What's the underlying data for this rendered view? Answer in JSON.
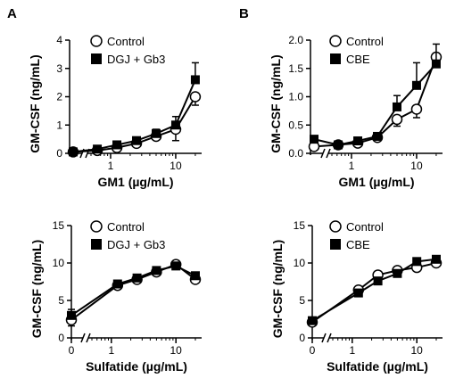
{
  "chart_data": [
    {
      "panel": "A",
      "type": "line",
      "xscale": "log",
      "xbreak": true,
      "xlabel": "GM1 (µg/mL)",
      "ylabel": "GM-CSF (ng/mL)",
      "ylim": [
        0,
        4
      ],
      "yticks": [
        "0",
        "1",
        "2",
        "3",
        "4"
      ],
      "xticks": [
        "1",
        "10"
      ],
      "legend_position": "top-left",
      "series": [
        {
          "name": "Control",
          "marker": "open-circle",
          "x": [
            0,
            0.625,
            1.25,
            2.5,
            5,
            10,
            20
          ],
          "y": [
            0.05,
            0.1,
            0.2,
            0.35,
            0.6,
            0.85,
            2.0
          ],
          "err": [
            0.04,
            0.05,
            0.08,
            0.1,
            0.12,
            0.4,
            0.3
          ]
        },
        {
          "name": "DGJ + Gb3",
          "marker": "filled-square",
          "x": [
            0,
            0.625,
            1.25,
            2.5,
            5,
            10,
            20
          ],
          "y": [
            0.05,
            0.15,
            0.3,
            0.45,
            0.7,
            1.0,
            2.6
          ],
          "err": [
            0.04,
            0.06,
            0.1,
            0.12,
            0.15,
            0.3,
            0.6
          ]
        }
      ]
    },
    {
      "panel": "B",
      "type": "line",
      "xscale": "log",
      "xbreak": true,
      "xlabel": "GM1 (µg/mL)",
      "ylabel": "GM-CSF (ng/mL)",
      "ylim": [
        0,
        2.0
      ],
      "yticks": [
        "0.0",
        "0.5",
        "1.0",
        "1.5",
        "2.0"
      ],
      "xticks": [
        "1",
        "10"
      ],
      "legend_position": "top-left",
      "series": [
        {
          "name": "Control",
          "marker": "open-circle",
          "x": [
            0,
            0.625,
            1.25,
            2.5,
            5,
            10,
            20
          ],
          "y": [
            0.12,
            0.15,
            0.18,
            0.28,
            0.6,
            0.78,
            1.7
          ],
          "err": [
            0.03,
            0.03,
            0.04,
            0.06,
            0.12,
            0.15,
            0.1
          ]
        },
        {
          "name": "CBE",
          "marker": "filled-square",
          "x": [
            0,
            0.625,
            1.25,
            2.5,
            5,
            10,
            20
          ],
          "y": [
            0.25,
            0.15,
            0.22,
            0.3,
            0.82,
            1.2,
            1.58
          ],
          "err": [
            0.05,
            0.03,
            0.04,
            0.05,
            0.2,
            0.4,
            0.35
          ]
        }
      ]
    },
    {
      "panel": "",
      "type": "line",
      "xscale": "log",
      "xbreak": true,
      "xlabel": "Sulfatide (µg/mL)",
      "ylabel": "GM-CSF (ng/mL)",
      "ylim": [
        0,
        15
      ],
      "yticks": [
        "0",
        "5",
        "10",
        "15"
      ],
      "xticks": [
        "0",
        "1",
        "10"
      ],
      "legend_position": "top-left",
      "series": [
        {
          "name": "Control",
          "marker": "open-circle",
          "x": [
            0,
            1.25,
            2.5,
            5,
            10,
            20
          ],
          "y": [
            2.4,
            7.0,
            7.8,
            8.8,
            9.8,
            7.8
          ],
          "err": [
            0.8,
            0.4,
            0.4,
            0.4,
            0.5,
            0.4
          ]
        },
        {
          "name": "DGJ + Gb3",
          "marker": "filled-square",
          "x": [
            0,
            1.25,
            2.5,
            5,
            10,
            20
          ],
          "y": [
            3.0,
            7.2,
            8.0,
            9.0,
            9.6,
            8.3
          ],
          "err": [
            0.8,
            0.4,
            0.4,
            0.4,
            0.5,
            0.4
          ]
        }
      ]
    },
    {
      "panel": "",
      "type": "line",
      "xscale": "log",
      "xbreak": true,
      "xlabel": "Sulfatide (µg/mL)",
      "ylabel": "GM-CSF (ng/mL)",
      "ylim": [
        0,
        15
      ],
      "yticks": [
        "0",
        "5",
        "10",
        "15"
      ],
      "xticks": [
        "0",
        "1",
        "10"
      ],
      "legend_position": "top-left",
      "series": [
        {
          "name": "Control",
          "marker": "open-circle",
          "x": [
            0,
            1.25,
            2.5,
            5,
            10,
            20
          ],
          "y": [
            2.1,
            6.4,
            8.4,
            9.0,
            9.4,
            10.0
          ],
          "err": [
            0.3,
            0.3,
            0.3,
            0.3,
            0.3,
            0.3
          ]
        },
        {
          "name": "CBE",
          "marker": "filled-square",
          "x": [
            0,
            1.25,
            2.5,
            5,
            10,
            20
          ],
          "y": [
            2.3,
            6.0,
            7.6,
            8.6,
            10.2,
            10.5
          ],
          "err": [
            0.3,
            0.3,
            0.3,
            0.3,
            0.3,
            0.3
          ]
        }
      ]
    }
  ]
}
